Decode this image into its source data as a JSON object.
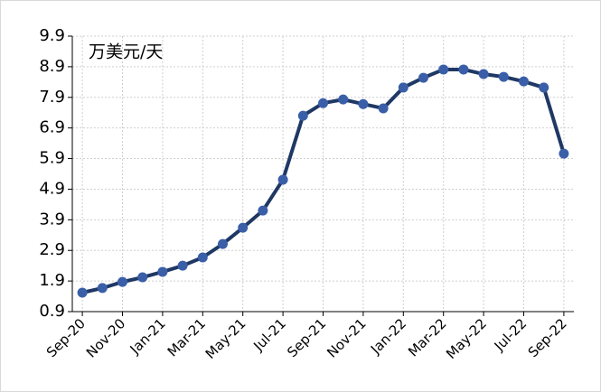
{
  "chart_data": {
    "type": "line",
    "annotation": "万美元/天",
    "categories": [
      "Sep-20",
      null,
      "Nov-20",
      null,
      "Jan-21",
      null,
      "Mar-21",
      null,
      "May-21",
      null,
      "Jul-21",
      null,
      "Sep-21",
      null,
      "Nov-21",
      null,
      "Jan-22",
      null,
      "Mar-22",
      null,
      "May-22",
      null,
      "Jul-22",
      null,
      "Sep-22"
    ],
    "series": [
      {
        "color": "#1f3864",
        "marker_color": "#3a5fa8",
        "values": [
          1.52,
          1.67,
          1.87,
          2.02,
          2.2,
          2.4,
          2.67,
          3.11,
          3.64,
          4.2,
          5.21,
          7.3,
          7.71,
          7.83,
          7.68,
          7.54,
          8.22,
          8.54,
          8.81,
          8.81,
          8.66,
          8.57,
          8.42,
          8.22,
          6.06
        ]
      }
    ],
    "ylim": [
      0.9,
      9.9
    ],
    "yticks": [
      0.9,
      1.9,
      2.9,
      3.9,
      4.9,
      5.9,
      6.9,
      7.9,
      8.9,
      9.9
    ],
    "grid": true
  }
}
